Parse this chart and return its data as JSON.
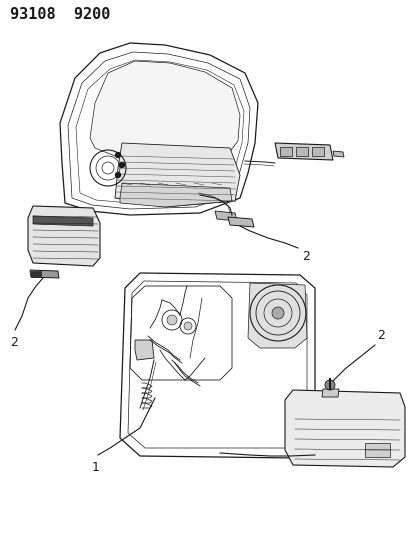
{
  "title_code": "93108  9200",
  "background_color": "#ffffff",
  "line_color": "#1a1a1a",
  "label_1": "1",
  "label_2": "2",
  "title_fontsize": 11,
  "label_fontsize": 9,
  "fig_width": 4.14,
  "fig_height": 5.33,
  "dpi": 100
}
